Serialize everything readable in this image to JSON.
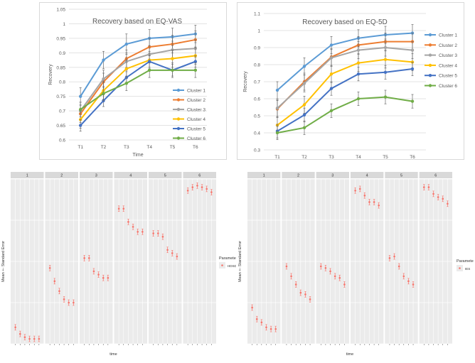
{
  "chart_data": [
    {
      "type": "line",
      "title": "Recovery based on EQ-VAS",
      "xlabel": "Time",
      "ylabel": "Recovery",
      "categories": [
        "T1",
        "T2",
        "T3",
        "T4",
        "T5",
        "T6"
      ],
      "ylim": [
        0.6,
        1.05
      ],
      "yticks": [
        "0.6",
        "0.65",
        "0.7",
        "0.75",
        "0.8",
        "0.85",
        "0.9",
        "0.95",
        "1",
        "1.05"
      ],
      "legend_position": "right",
      "series": [
        {
          "name": "Cluster 1",
          "color": "#5b9bd5",
          "values": [
            0.75,
            0.875,
            0.93,
            0.95,
            0.955,
            0.965
          ],
          "err": [
            0.03,
            0.03,
            0.035,
            0.03,
            0.03,
            0.03
          ]
        },
        {
          "name": "Cluster 2",
          "color": "#ed7d31",
          "values": [
            0.69,
            0.8,
            0.88,
            0.92,
            0.93,
            0.945
          ],
          "err": [
            0.03,
            0.03,
            0.03,
            0.03,
            0.03,
            0.03
          ]
        },
        {
          "name": "Cluster 3",
          "color": "#a5a5a5",
          "values": [
            0.7,
            0.81,
            0.87,
            0.895,
            0.91,
            0.915
          ],
          "err": [
            0.03,
            0.03,
            0.03,
            0.03,
            0.03,
            0.03
          ]
        },
        {
          "name": "Cluster 4",
          "color": "#ffc000",
          "values": [
            0.67,
            0.77,
            0.845,
            0.875,
            0.88,
            0.89
          ],
          "err": [
            0.03,
            0.03,
            0.03,
            0.03,
            0.03,
            0.03
          ]
        },
        {
          "name": "Cluster 5",
          "color": "#4472c4",
          "values": [
            0.65,
            0.735,
            0.815,
            0.87,
            0.84,
            0.87
          ],
          "err": [
            0.02,
            0.02,
            0.02,
            0.02,
            0.02,
            0.02
          ]
        },
        {
          "name": "Cluster 6",
          "color": "#70ad47",
          "values": [
            0.705,
            0.76,
            0.795,
            0.84,
            0.84,
            0.84
          ],
          "err": [
            0.025,
            0.025,
            0.025,
            0.025,
            0.025,
            0.025
          ]
        }
      ]
    },
    {
      "type": "line",
      "title": "Recovery based on EQ-5D",
      "xlabel": "Time",
      "ylabel": "Recovery",
      "categories": [
        "T1",
        "T2",
        "T3",
        "T4",
        "T5",
        "T6"
      ],
      "ylim": [
        0.3,
        1.1
      ],
      "yticks": [
        "0.3",
        "0.4",
        "0.5",
        "0.6",
        "0.7",
        "0.8",
        "0.9",
        "1",
        "1.1"
      ],
      "legend_position": "right",
      "series": [
        {
          "name": "Cluster 1",
          "color": "#5b9bd5",
          "values": [
            0.65,
            0.79,
            0.915,
            0.955,
            0.975,
            0.985
          ],
          "err": [
            0.05,
            0.05,
            0.05,
            0.05,
            0.05,
            0.05
          ]
        },
        {
          "name": "Cluster 2",
          "color": "#ed7d31",
          "values": [
            0.54,
            0.7,
            0.845,
            0.915,
            0.935,
            0.935
          ],
          "err": [
            0.05,
            0.05,
            0.05,
            0.05,
            0.05,
            0.05
          ]
        },
        {
          "name": "Cluster 3",
          "color": "#a5a5a5",
          "values": [
            0.545,
            0.69,
            0.84,
            0.885,
            0.9,
            0.885
          ],
          "err": [
            0.05,
            0.05,
            0.05,
            0.05,
            0.05,
            0.05
          ]
        },
        {
          "name": "Cluster 4",
          "color": "#ffc000",
          "values": [
            0.445,
            0.565,
            0.745,
            0.81,
            0.83,
            0.815
          ],
          "err": [
            0.05,
            0.05,
            0.05,
            0.05,
            0.05,
            0.05
          ]
        },
        {
          "name": "Cluster 5",
          "color": "#4472c4",
          "values": [
            0.41,
            0.505,
            0.66,
            0.745,
            0.755,
            0.775
          ],
          "err": [
            0.04,
            0.04,
            0.04,
            0.04,
            0.04,
            0.04
          ]
        },
        {
          "name": "Cluster 6",
          "color": "#70ad47",
          "values": [
            0.4,
            0.43,
            0.53,
            0.6,
            0.61,
            0.585
          ],
          "err": [
            0.04,
            0.04,
            0.04,
            0.04,
            0.04,
            0.04
          ]
        }
      ]
    },
    {
      "type": "scatter",
      "facets": [
        "1",
        "2",
        "3",
        "4",
        "5",
        "6"
      ],
      "xlabel": "time",
      "ylabel": "Mean +- Standard Error",
      "ylim": [
        0,
        1
      ],
      "legend_title": "Parameter",
      "legend_label": "HDSD",
      "point_color": "#f8766d",
      "facet_values": [
        [
          0.1,
          0.06,
          0.04,
          0.03,
          0.03,
          0.03
        ],
        [
          0.46,
          0.38,
          0.32,
          0.27,
          0.25,
          0.25
        ],
        [
          0.52,
          0.52,
          0.44,
          0.42,
          0.4,
          0.4
        ],
        [
          0.82,
          0.82,
          0.74,
          0.71,
          0.68,
          0.68
        ],
        [
          0.67,
          0.67,
          0.65,
          0.57,
          0.55,
          0.53
        ],
        [
          0.93,
          0.95,
          0.96,
          0.95,
          0.94,
          0.92
        ]
      ]
    },
    {
      "type": "scatter",
      "facets": [
        "1",
        "2",
        "3",
        "4",
        "5",
        "6"
      ],
      "xlabel": "time",
      "ylabel": "Mean +- Standard Error",
      "ylim": [
        0,
        1
      ],
      "legend_title": "Parameter",
      "legend_label": "IES",
      "point_color": "#f8766d",
      "facet_values": [
        [
          0.22,
          0.15,
          0.13,
          0.1,
          0.09,
          0.09
        ],
        [
          0.47,
          0.41,
          0.36,
          0.31,
          0.3,
          0.27
        ],
        [
          0.47,
          0.46,
          0.44,
          0.41,
          0.4,
          0.36
        ],
        [
          0.93,
          0.94,
          0.9,
          0.86,
          0.86,
          0.84
        ],
        [
          0.52,
          0.53,
          0.47,
          0.41,
          0.38,
          0.36
        ],
        [
          0.95,
          0.95,
          0.91,
          0.89,
          0.88,
          0.85
        ]
      ]
    }
  ]
}
